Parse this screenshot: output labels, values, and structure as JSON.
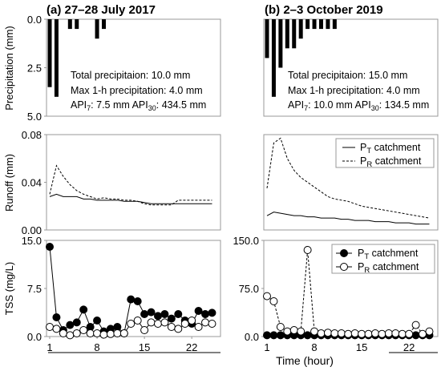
{
  "panels": [
    {
      "title": "(a) 27–28 July 2017",
      "annotations": [
        "Total precipitaion: 10.0 mm",
        "Max 1-h precipitation: 4.0 mm",
        "API7",
        "API30"
      ]
    },
    {
      "title": "(b) 2–3 October 2019",
      "annotations": [
        "Total precipitaion: 15.0 mm",
        "Max 1-h precipitation: 4.0 mm",
        "API7",
        "API30"
      ]
    }
  ],
  "xlabel": "Time (hour)",
  "chart_data": [
    {
      "type": "bar",
      "panel": "a",
      "row": "precipitation",
      "title": "(a) 27–28 July 2017",
      "ylabel": "Precipitation (mm)",
      "ylim": [
        5.0,
        0.0
      ],
      "y_inverted": true,
      "yticks": [
        "0.0",
        "2.5",
        "5.0"
      ],
      "x": [
        1,
        2,
        3,
        4,
        5,
        6,
        7,
        8,
        9,
        10,
        11,
        12,
        13,
        14,
        15,
        16,
        17,
        18,
        19,
        20,
        21,
        22,
        23,
        24,
        25
      ],
      "values": [
        3.5,
        4.0,
        0,
        0.5,
        0.5,
        0,
        0,
        1.0,
        0.5,
        0,
        0,
        0,
        0,
        0,
        0,
        0,
        0,
        0,
        0,
        0,
        0,
        0,
        0,
        0,
        0
      ],
      "text": {
        "total": "Total precipitaion: 10.0 mm",
        "max": "Max 1-h precipitation: 4.0 mm",
        "api7": "7.5 mm",
        "api30": "434.5 mm"
      }
    },
    {
      "type": "bar",
      "panel": "b",
      "row": "precipitation",
      "title": "(b) 2–3 October 2019",
      "ylim": [
        5.0,
        0.0
      ],
      "y_inverted": true,
      "x": [
        1,
        2,
        3,
        4,
        5,
        6,
        7,
        8,
        9,
        10,
        11,
        12,
        13,
        14,
        15,
        16,
        17,
        18,
        19,
        20,
        21,
        22,
        23,
        24,
        25
      ],
      "values": [
        2.0,
        4.0,
        2.5,
        1.5,
        1.5,
        1.0,
        0.5,
        0.5,
        0.5,
        0.5,
        0.5,
        0,
        0,
        0,
        0,
        0,
        0,
        0,
        0,
        0,
        0,
        0,
        0,
        0,
        0
      ],
      "text": {
        "total": "Total precipitaion: 15.0 mm",
        "max": "Max 1-h precipitation: 4.0 mm",
        "api7": "10.0 mm",
        "api30": "134.5 mm"
      }
    },
    {
      "type": "line",
      "panel": "a",
      "row": "runoff",
      "ylabel": "Runoff (mm)",
      "ylim": [
        0.0,
        0.08
      ],
      "yticks": [
        "0.00",
        "0.04",
        "0.08"
      ],
      "x": [
        1,
        2,
        3,
        4,
        5,
        6,
        7,
        8,
        9,
        10,
        11,
        12,
        13,
        14,
        15,
        16,
        17,
        18,
        19,
        20,
        21,
        22,
        23,
        24,
        25
      ],
      "series": [
        {
          "name": "PT catchment",
          "style": "solid",
          "values": [
            0.028,
            0.03,
            0.028,
            0.028,
            0.028,
            0.026,
            0.026,
            0.025,
            0.025,
            0.025,
            0.025,
            0.024,
            0.024,
            0.024,
            0.023,
            0.022,
            0.022,
            0.022,
            0.022,
            0.022,
            0.022,
            0.022,
            0.022,
            0.022,
            0.022
          ]
        },
        {
          "name": "PR catchment",
          "style": "dashed",
          "values": [
            0.03,
            0.054,
            0.045,
            0.038,
            0.033,
            0.03,
            0.028,
            0.026,
            0.027,
            0.026,
            0.026,
            0.025,
            0.025,
            0.024,
            0.022,
            0.021,
            0.021,
            0.021,
            0.021,
            0.025,
            0.025,
            0.025,
            0.025,
            0.025,
            0.025
          ]
        }
      ]
    },
    {
      "type": "line",
      "panel": "b",
      "row": "runoff",
      "ylim": [
        0.0,
        0.08
      ],
      "legend": "top-right",
      "x": [
        1,
        2,
        3,
        4,
        5,
        6,
        7,
        8,
        9,
        10,
        11,
        12,
        13,
        14,
        15,
        16,
        17,
        18,
        19,
        20,
        21,
        22,
        23,
        24,
        25
      ],
      "series": [
        {
          "name": "PT catchment",
          "style": "solid",
          "values": [
            0.012,
            0.015,
            0.014,
            0.013,
            0.012,
            0.012,
            0.011,
            0.011,
            0.01,
            0.01,
            0.01,
            0.009,
            0.009,
            0.008,
            0.008,
            0.008,
            0.007,
            0.007,
            0.007,
            0.006,
            0.006,
            0.006,
            0.005,
            0.005,
            0.005
          ]
        },
        {
          "name": "PR catchment",
          "style": "dashed",
          "values": [
            0.035,
            0.073,
            0.077,
            0.06,
            0.05,
            0.044,
            0.04,
            0.036,
            0.032,
            0.028,
            0.026,
            0.025,
            0.024,
            0.022,
            0.02,
            0.019,
            0.018,
            0.017,
            0.016,
            0.015,
            0.014,
            0.013,
            0.012,
            0.011,
            0.01
          ]
        }
      ]
    },
    {
      "type": "scatter",
      "panel": "a",
      "row": "tss",
      "ylabel": "TSS (mg/L)",
      "ylim": [
        0.0,
        15.0
      ],
      "yticks": [
        "0.0",
        "7.5",
        "15.0"
      ],
      "xticks": [
        "1",
        "8",
        "15",
        "22"
      ],
      "x": [
        1,
        2,
        3,
        4,
        5,
        6,
        7,
        8,
        9,
        10,
        11,
        12,
        13,
        14,
        15,
        16,
        17,
        18,
        19,
        20,
        21,
        22,
        23,
        24,
        25
      ],
      "series": [
        {
          "name": "PT catchment",
          "marker": "filled",
          "values": [
            14.0,
            3.0,
            1.0,
            1.8,
            2.2,
            4.2,
            1.5,
            2.5,
            0.8,
            1.2,
            1.5,
            0.5,
            5.8,
            5.5,
            3.5,
            3.8,
            3.2,
            3.5,
            2.8,
            3.5,
            2.5,
            2.0,
            4.0,
            3.5,
            3.7
          ]
        },
        {
          "name": "PR catchment",
          "marker": "hollow",
          "values": [
            1.5,
            1.2,
            0.5,
            0.2,
            0.5,
            1.0,
            0.5,
            0.5,
            0.3,
            0.4,
            0.5,
            0.5,
            2.0,
            2.5,
            1.0,
            2.2,
            2.0,
            2.2,
            1.5,
            1.2,
            2.0,
            2.5,
            1.5,
            2.2,
            2.0
          ]
        }
      ]
    },
    {
      "type": "scatter",
      "panel": "b",
      "row": "tss",
      "ylim": [
        0.0,
        150.0
      ],
      "yticks": [
        "0.0",
        "75.0",
        "150.0"
      ],
      "xticks": [
        "1",
        "8",
        "15",
        "22"
      ],
      "legend": "top-right",
      "x": [
        1,
        2,
        3,
        4,
        5,
        6,
        7,
        8,
        9,
        10,
        11,
        12,
        13,
        14,
        15,
        16,
        17,
        18,
        19,
        20,
        21,
        22,
        23,
        24,
        25
      ],
      "series": [
        {
          "name": "PT catchment",
          "marker": "filled",
          "values": [
            2,
            2,
            2,
            2,
            2,
            2,
            2,
            2,
            2,
            2,
            2,
            2,
            2,
            2,
            2,
            2,
            2,
            2,
            2,
            2,
            2,
            2,
            2,
            2,
            2
          ]
        },
        {
          "name": "PR catchment",
          "marker": "hollow",
          "style": "dashed",
          "values": [
            63,
            55,
            15,
            8,
            10,
            8,
            135,
            8,
            5,
            6,
            5,
            5,
            4,
            5,
            4,
            4,
            5,
            4,
            5,
            5,
            4,
            4,
            18,
            4,
            8
          ]
        }
      ]
    }
  ]
}
